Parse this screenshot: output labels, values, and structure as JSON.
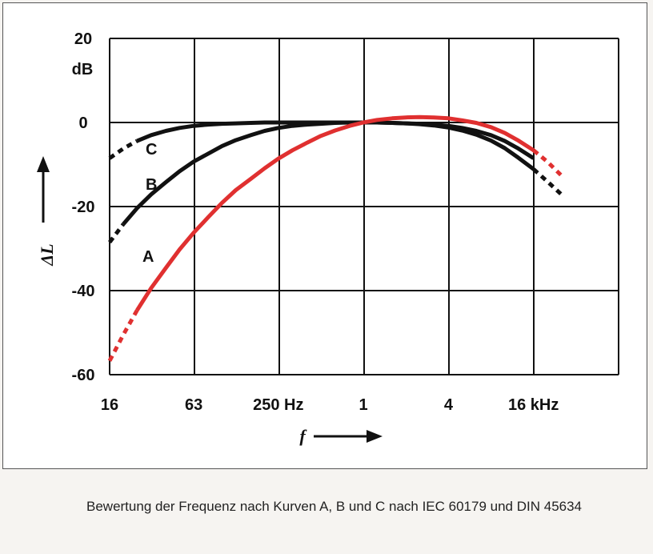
{
  "caption": "Bewertung der Frequenz nach Kurven A, B und C nach IEC 60179 und DIN 45634",
  "chart_data": {
    "type": "line",
    "x_scale": "log",
    "x_tick_labels": [
      "16",
      "63",
      "250 Hz",
      "1",
      "4",
      "16 kHz"
    ],
    "x_ticks_hz": [
      16,
      63,
      250,
      1000,
      4000,
      16000
    ],
    "xlim_hz": [
      16,
      64000
    ],
    "y_tick_labels": [
      "20",
      "0",
      "-20",
      "-40",
      "-60"
    ],
    "y_ticks": [
      20,
      0,
      -20,
      -40,
      -60
    ],
    "y_unit": "dB",
    "ylim": [
      -60,
      20
    ],
    "xlabel": "f",
    "ylabel": "ΔL",
    "grid": true,
    "colors": {
      "A": "#e03030",
      "B": "#111111",
      "C": "#111111"
    },
    "series": [
      {
        "name": "A",
        "x": [
          16,
          20,
          25,
          31.5,
          40,
          50,
          63,
          80,
          100,
          125,
          160,
          200,
          250,
          315,
          400,
          500,
          630,
          800,
          1000,
          1250,
          1600,
          2000,
          2500,
          3150,
          4000,
          5000,
          6300,
          8000,
          10000,
          12500,
          16000,
          20000,
          25000
        ],
        "y": [
          -56.7,
          -50.5,
          -44.7,
          -39.4,
          -34.6,
          -30.2,
          -26.2,
          -22.5,
          -19.1,
          -16.1,
          -13.4,
          -10.9,
          -8.6,
          -6.6,
          -4.8,
          -3.2,
          -1.9,
          -0.8,
          0,
          0.6,
          1.0,
          1.2,
          1.3,
          1.2,
          1.0,
          0.5,
          -0.1,
          -1.1,
          -2.5,
          -4.3,
          -6.6,
          -9.3,
          -12.5
        ],
        "dashed_below_hz": 31.5,
        "dashed_above_hz": 16000
      },
      {
        "name": "B",
        "x": [
          16,
          20,
          25,
          31.5,
          40,
          50,
          63,
          80,
          100,
          125,
          160,
          200,
          250,
          315,
          400,
          500,
          630,
          800,
          1000,
          1250,
          1600,
          2000,
          2500,
          3150,
          4000,
          5000,
          6300,
          8000,
          10000,
          12500,
          16000,
          20000,
          25000
        ],
        "y": [
          -28.5,
          -24.2,
          -20.4,
          -17.1,
          -14.2,
          -11.6,
          -9.3,
          -7.4,
          -5.6,
          -4.2,
          -3.0,
          -2.0,
          -1.3,
          -0.8,
          -0.5,
          -0.3,
          -0.1,
          0,
          0,
          0,
          -0.1,
          -0.2,
          -0.4,
          -0.7,
          -1.2,
          -1.9,
          -2.9,
          -4.3,
          -6.1,
          -8.4,
          -11.1,
          -14.0,
          -17.0
        ],
        "dashed_below_hz": 25,
        "dashed_above_hz": 16000
      },
      {
        "name": "C",
        "x": [
          16,
          20,
          25,
          31.5,
          40,
          50,
          63,
          80,
          100,
          125,
          160,
          200,
          250,
          315,
          400,
          500,
          630,
          800,
          1000,
          1250,
          1600,
          2000,
          2500,
          3150,
          4000,
          5000,
          6300,
          8000,
          10000,
          12500,
          16000
        ],
        "y": [
          -8.5,
          -6.2,
          -4.4,
          -3.0,
          -2.0,
          -1.3,
          -0.8,
          -0.5,
          -0.3,
          -0.2,
          -0.1,
          0,
          0,
          0,
          0,
          0,
          0,
          0,
          0,
          0,
          -0.1,
          -0.2,
          -0.3,
          -0.5,
          -0.8,
          -1.3,
          -2.0,
          -3.0,
          -4.4,
          -6.2,
          -8.5
        ],
        "dashed_below_hz": 31.5
      }
    ]
  }
}
